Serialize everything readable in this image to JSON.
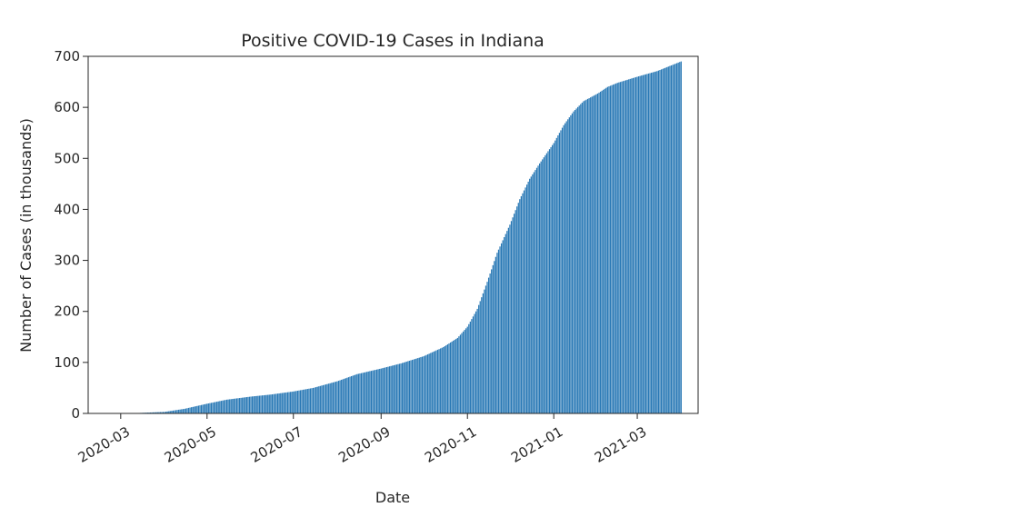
{
  "chart_data": {
    "type": "bar",
    "title": "Positive COVID-19 Cases in Indiana",
    "xlabel": "Date",
    "ylabel": "Number of Cases (in thousands)",
    "ylim": [
      0,
      700
    ],
    "y_ticks": [
      0,
      100,
      200,
      300,
      400,
      500,
      600,
      700
    ],
    "x_range": [
      "2020-02-07",
      "2021-04-13"
    ],
    "x_ticks": [
      "2020-03",
      "2020-05",
      "2020-07",
      "2020-09",
      "2020-11",
      "2021-01",
      "2021-03"
    ],
    "grid": false,
    "bar_color": "#2878b5",
    "series": [
      {
        "dates": [
          "2020-03-06",
          "2020-04-01",
          "2020-04-15",
          "2020-05-01",
          "2020-05-15",
          "2020-06-01",
          "2020-06-15",
          "2020-07-01",
          "2020-07-15",
          "2020-08-01",
          "2020-08-15",
          "2020-09-01",
          "2020-09-15",
          "2020-10-01",
          "2020-10-15",
          "2020-10-25",
          "2020-11-01",
          "2020-11-08",
          "2020-11-15",
          "2020-11-22",
          "2020-12-01",
          "2020-12-08",
          "2020-12-15",
          "2020-12-22",
          "2021-01-01",
          "2021-01-08",
          "2021-01-15",
          "2021-01-22",
          "2021-02-01",
          "2021-02-08",
          "2021-02-15",
          "2021-03-01",
          "2021-03-15",
          "2021-04-01"
        ],
        "values": [
          0,
          3,
          9,
          19,
          27,
          33,
          37,
          43,
          50,
          63,
          77,
          88,
          98,
          112,
          130,
          148,
          170,
          205,
          258,
          315,
          370,
          420,
          460,
          490,
          530,
          565,
          592,
          612,
          627,
          640,
          648,
          660,
          671,
          690
        ]
      }
    ]
  }
}
